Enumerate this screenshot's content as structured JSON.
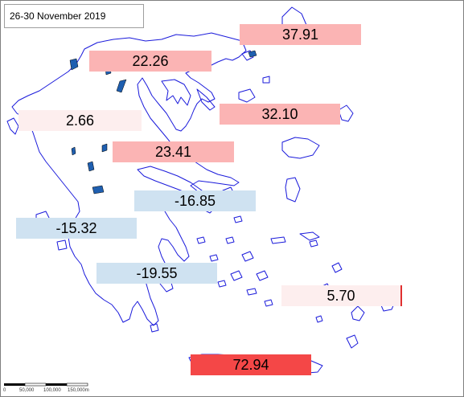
{
  "date_range": "26-30  November 2019",
  "colors": {
    "coast": "#1a1adb",
    "lake": "#1f5fb0",
    "strong_positive": "#f44747",
    "positive": "#fbb4b4",
    "slight_positive": "#fdeeee",
    "negative": "#cfe2f1",
    "strong_positive_marker": "#e03030"
  },
  "regions": [
    {
      "id": "east-macedonia-thrace",
      "value": "37.91",
      "color": "#fbb4b4"
    },
    {
      "id": "central-macedonia",
      "value": "22.26",
      "color": "#fbb4b4"
    },
    {
      "id": "epirus",
      "value": "2.66",
      "color": "#fdeeee"
    },
    {
      "id": "north-aegean",
      "value": "32.10",
      "color": "#fbb4b4"
    },
    {
      "id": "thessaly",
      "value": "23.41",
      "color": "#fbb4b4"
    },
    {
      "id": "central-greece",
      "value": "-16.85",
      "color": "#cfe2f1"
    },
    {
      "id": "western-greece",
      "value": "-15.32",
      "color": "#cfe2f1"
    },
    {
      "id": "peloponnese",
      "value": "-19.55",
      "color": "#cfe2f1"
    },
    {
      "id": "south-aegean",
      "value": "5.70",
      "color": "#fdeeee"
    },
    {
      "id": "crete",
      "value": "72.94",
      "color": "#f44747"
    }
  ],
  "scale": {
    "ticks": [
      "0",
      "50,000",
      "100,000",
      "150,000m"
    ]
  }
}
